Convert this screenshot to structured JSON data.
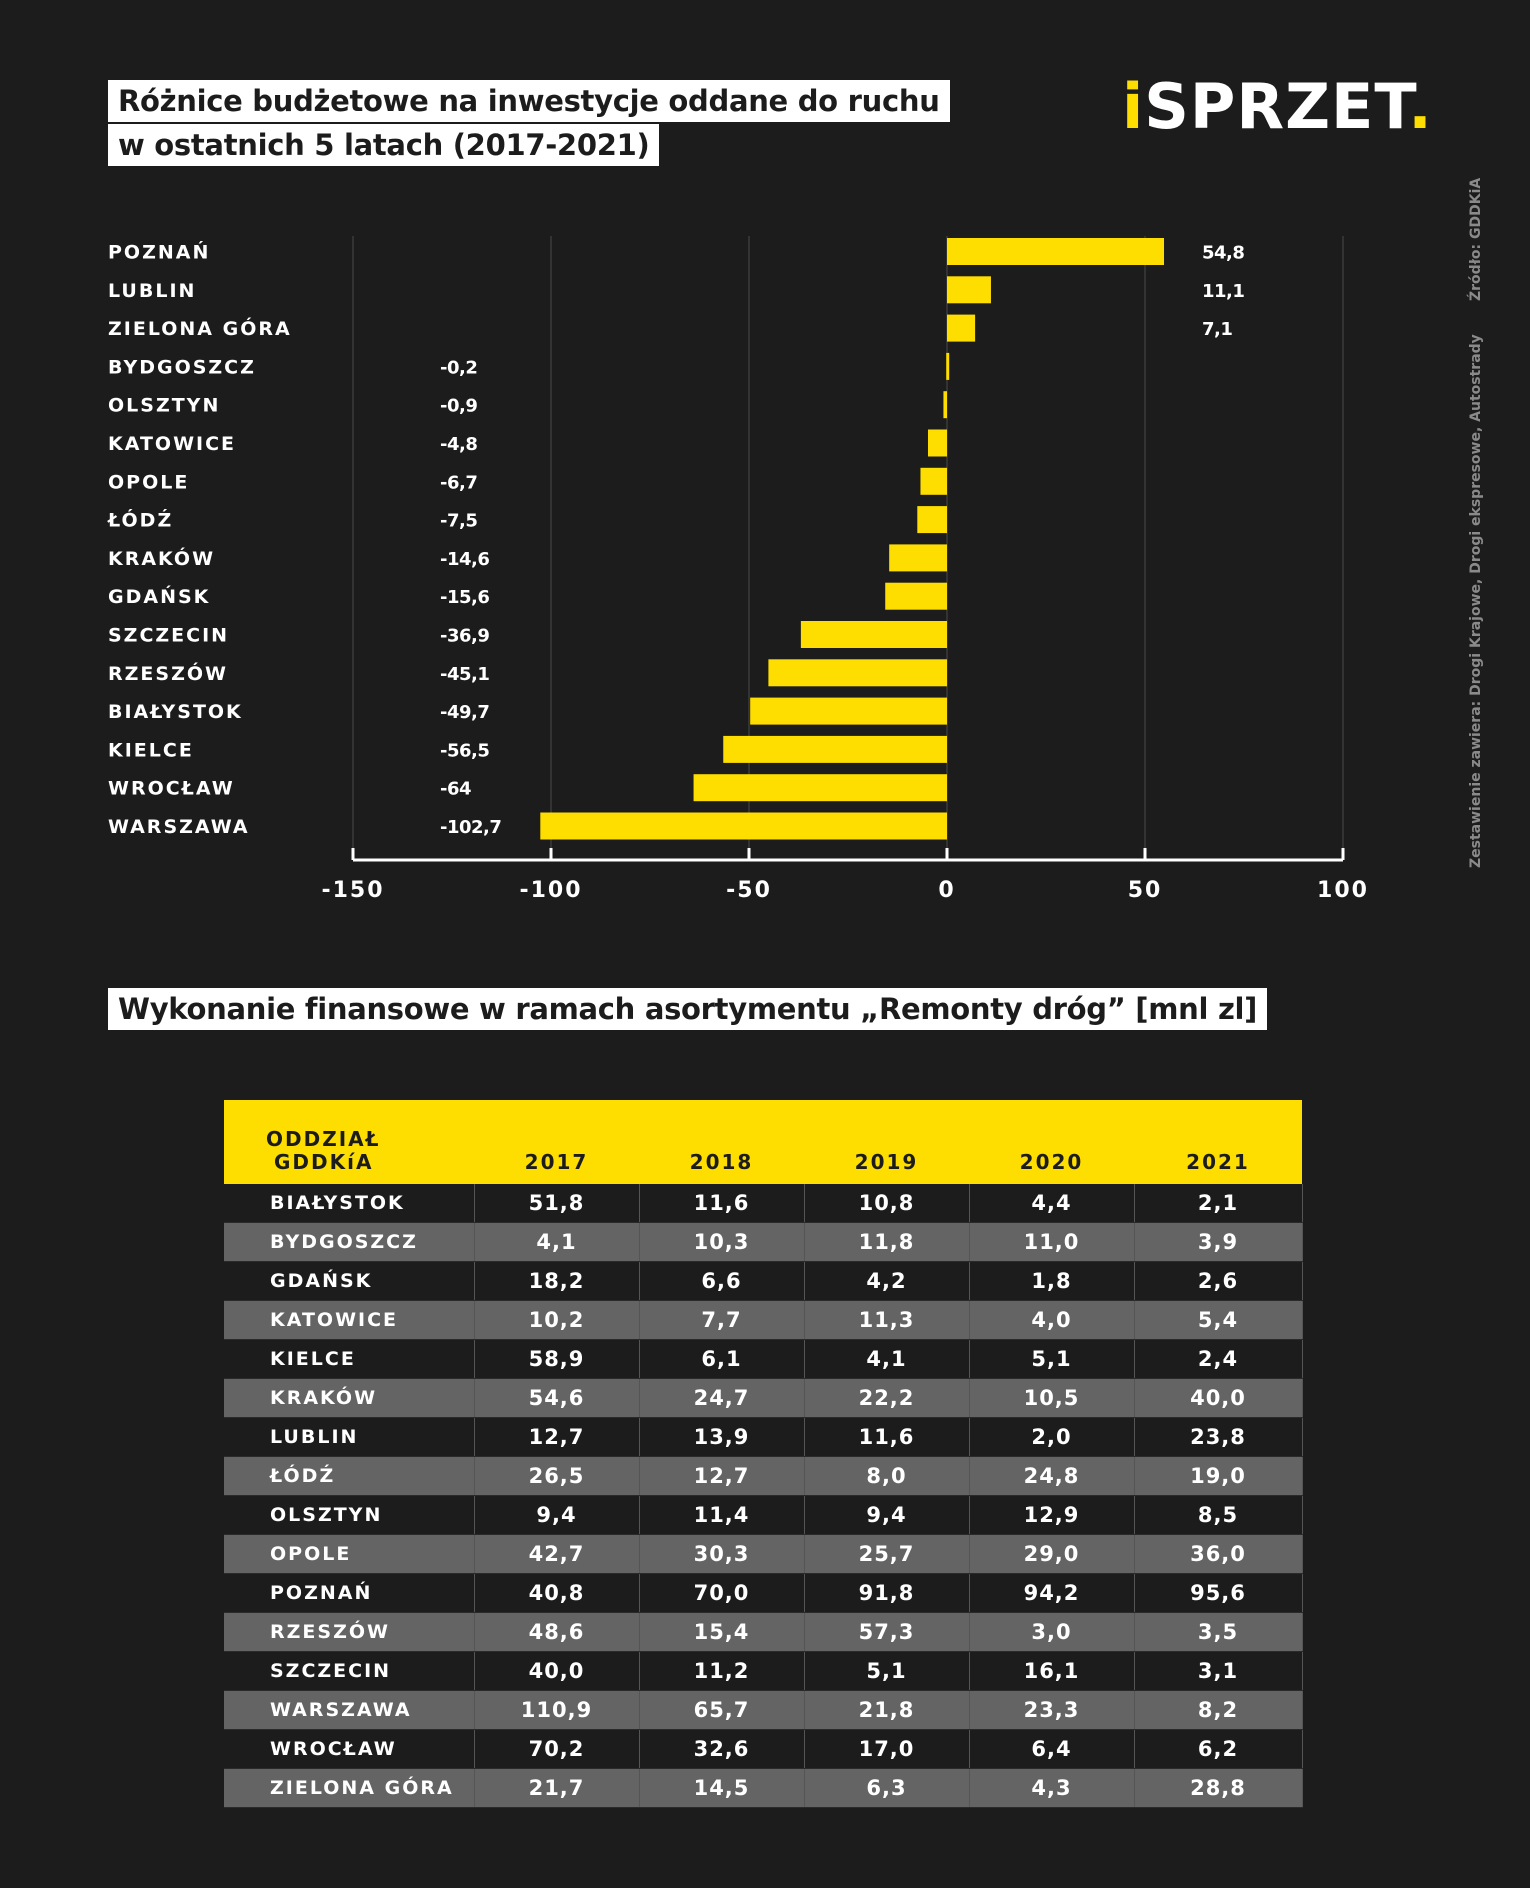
{
  "titles": {
    "chart_line1": "Różnice budżetowe na inwestycje oddane do ruchu",
    "chart_line2": "w ostatnich 5 latach (2017-2021)",
    "table": "Wykonanie finansowe w ramach asortymentu „Remonty dróg” [mnl zl]"
  },
  "logo": {
    "prefix": "i",
    "main": "SPRZET",
    "suffix": "."
  },
  "source": {
    "left": "Zestawienie zawiera: Drogi Krajowe, Drogi ekspresowe, Autostrady",
    "right": "Źródło: GDDKiA"
  },
  "colors": {
    "accent": "#fedd00",
    "background": "#1c1c1c",
    "row_alt": "#646464"
  },
  "chart_data": {
    "type": "bar",
    "orientation": "horizontal",
    "title": "Różnice budżetowe na inwestycje oddane do ruchu w ostatnich 5 latach (2017-2021)",
    "categories": [
      "POZNAŃ",
      "LUBLIN",
      "ZIELONA GÓRA",
      "BYDGOSZCZ",
      "OLSZTYN",
      "KATOWICE",
      "OPOLE",
      "ŁÓDŹ",
      "KRAKÓW",
      "GDAŃSK",
      "SZCZECIN",
      "RZESZÓW",
      "BIAŁYSTOK",
      "KIELCE",
      "WROCŁAW",
      "WARSZAWA"
    ],
    "values": [
      54.8,
      11.1,
      7.1,
      -0.2,
      -0.9,
      -4.8,
      -6.7,
      -7.5,
      -14.6,
      -15.6,
      -36.9,
      -45.1,
      -49.7,
      -56.5,
      -64,
      -102.7
    ],
    "value_labels": [
      "54,8",
      "11,1",
      "7,1",
      "-0,2",
      "-0,9",
      "-4,8",
      "-6,7",
      "-7,5",
      "-14,6",
      "-15,6",
      "-36,9",
      "-45,1",
      "-49,7",
      "-56,5",
      "-64",
      "-102,7"
    ],
    "xlim": [
      -150,
      100
    ],
    "xticks": [
      -150,
      -100,
      -50,
      0,
      50,
      100
    ],
    "xtick_labels": [
      "-150",
      "-100",
      "-50",
      "0",
      "50",
      "100"
    ],
    "grid": "vertical",
    "bar_color": "#fedd00"
  },
  "table": {
    "header_first": [
      "ODDZIAŁ",
      "GDDKíA"
    ],
    "years": [
      "2017",
      "2018",
      "2019",
      "2020",
      "2021"
    ],
    "rows": [
      {
        "city": "BIAŁYSTOK",
        "values": [
          "51,8",
          "11,6",
          "10,8",
          "4,4",
          "2,1"
        ]
      },
      {
        "city": "BYDGOSZCZ",
        "values": [
          "4,1",
          "10,3",
          "11,8",
          "11,0",
          "3,9"
        ]
      },
      {
        "city": "GDAŃSK",
        "values": [
          "18,2",
          "6,6",
          "4,2",
          "1,8",
          "2,6"
        ]
      },
      {
        "city": "KATOWICE",
        "values": [
          "10,2",
          "7,7",
          "11,3",
          "4,0",
          "5,4"
        ]
      },
      {
        "city": "KIELCE",
        "values": [
          "58,9",
          "6,1",
          "4,1",
          "5,1",
          "2,4"
        ]
      },
      {
        "city": "KRAKÓW",
        "values": [
          "54,6",
          "24,7",
          "22,2",
          "10,5",
          "40,0"
        ]
      },
      {
        "city": "LUBLIN",
        "values": [
          "12,7",
          "13,9",
          "11,6",
          "2,0",
          "23,8"
        ]
      },
      {
        "city": "ŁÓDŹ",
        "values": [
          "26,5",
          "12,7",
          "8,0",
          "24,8",
          "19,0"
        ]
      },
      {
        "city": "OLSZTYN",
        "values": [
          "9,4",
          "11,4",
          "9,4",
          "12,9",
          "8,5"
        ]
      },
      {
        "city": "OPOLE",
        "values": [
          "42,7",
          "30,3",
          "25,7",
          "29,0",
          "36,0"
        ]
      },
      {
        "city": "POZNAŃ",
        "values": [
          "40,8",
          "70,0",
          "91,8",
          "94,2",
          "95,6"
        ]
      },
      {
        "city": "RZESZÓW",
        "values": [
          "48,6",
          "15,4",
          "57,3",
          "3,0",
          "3,5"
        ]
      },
      {
        "city": "SZCZECIN",
        "values": [
          "40,0",
          "11,2",
          "5,1",
          "16,1",
          "3,1"
        ]
      },
      {
        "city": "WARSZAWA",
        "values": [
          "110,9",
          "65,7",
          "21,8",
          "23,3",
          "8,2"
        ]
      },
      {
        "city": "WROCŁAW",
        "values": [
          "70,2",
          "32,6",
          "17,0",
          "6,4",
          "6,2"
        ]
      },
      {
        "city": "ZIELONA GÓRA",
        "values": [
          "21,7",
          "14,5",
          "6,3",
          "4,3",
          "28,8"
        ]
      }
    ]
  }
}
